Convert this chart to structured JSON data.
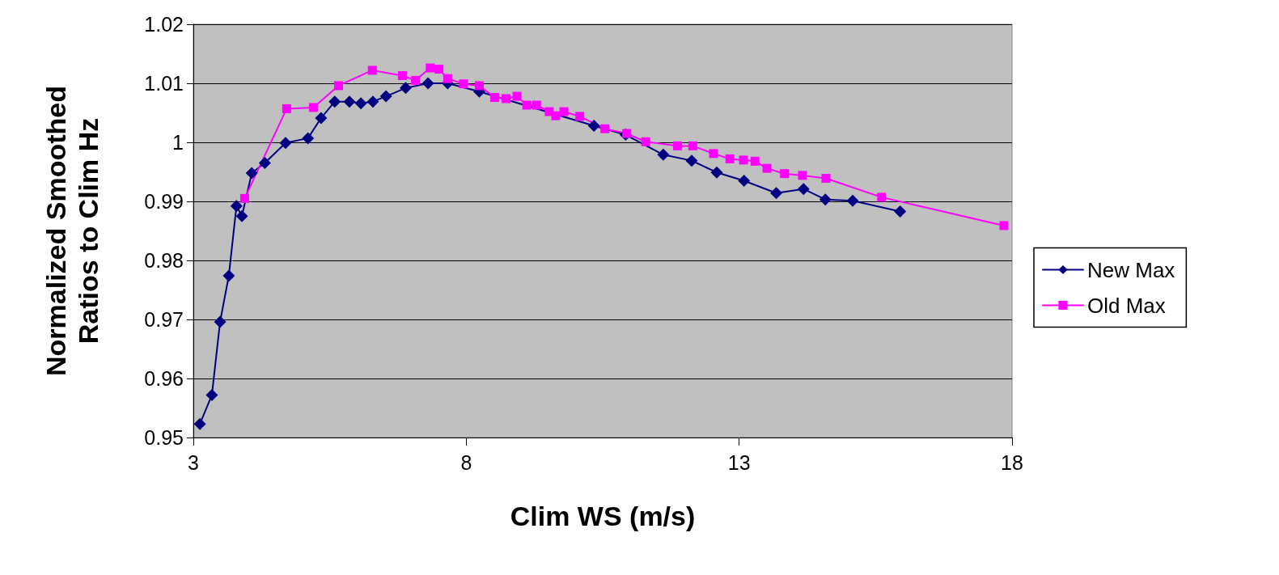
{
  "chart_data": {
    "type": "line",
    "xlabel": "Clim WS (m/s)",
    "ylabel": "Normalized Smoothed Ratios to Clim Hz",
    "xlim": [
      3,
      18
    ],
    "xticks": [
      3,
      8,
      13,
      18
    ],
    "ylim": [
      0.95,
      1.02
    ],
    "yticks": [
      0.95,
      0.96,
      0.97,
      0.98,
      0.99,
      1,
      1.01,
      1.02
    ],
    "grid": "y",
    "legend": "right",
    "series": [
      {
        "name": "New Max",
        "color": "#000080",
        "marker": "diamond",
        "x": [
          3.12,
          3.34,
          3.49,
          3.65,
          3.79,
          3.89,
          4.07,
          4.31,
          4.69,
          5.1,
          5.34,
          5.59,
          5.86,
          6.07,
          6.29,
          6.53,
          6.89,
          7.3,
          7.66,
          8.24,
          10.34,
          10.92,
          11.61,
          12.13,
          12.59,
          13.09,
          13.68,
          14.18,
          14.58,
          15.08,
          15.95
        ],
        "values": [
          0.9523,
          0.9572,
          0.9696,
          0.9774,
          0.9892,
          0.9875,
          0.9948,
          0.9965,
          0.9999,
          1.0007,
          1.0041,
          1.0069,
          1.0069,
          1.0066,
          1.0069,
          1.0078,
          1.0092,
          1.01,
          1.01,
          1.0086,
          1.0028,
          1.0013,
          0.9979,
          0.9969,
          0.9949,
          0.9935,
          0.9914,
          0.9921,
          0.9903,
          0.9901,
          0.9883
        ]
      },
      {
        "name": "Old Max",
        "color": "#ff00ff",
        "marker": "square",
        "x": [
          3.94,
          4.71,
          5.2,
          5.66,
          6.28,
          6.83,
          7.07,
          7.34,
          7.5,
          7.66,
          7.95,
          8.24,
          8.52,
          8.73,
          8.93,
          9.11,
          9.29,
          9.52,
          9.64,
          9.79,
          10.08,
          10.54,
          10.94,
          11.29,
          11.87,
          12.15,
          12.53,
          12.83,
          13.08,
          13.29,
          13.51,
          13.83,
          14.16,
          14.59,
          15.61,
          17.85
        ],
        "values": [
          0.9905,
          1.0057,
          1.0059,
          1.0096,
          1.0122,
          1.0113,
          1.0105,
          1.0126,
          1.0124,
          1.0108,
          1.0099,
          1.0096,
          1.0076,
          1.0074,
          1.0078,
          1.0063,
          1.0063,
          1.0052,
          1.0045,
          1.0052,
          1.0044,
          1.0023,
          1.0015,
          1.0001,
          0.9994,
          0.9994,
          0.9981,
          0.9972,
          0.997,
          0.9968,
          0.9956,
          0.9947,
          0.9944,
          0.9939,
          0.9907,
          0.9859
        ]
      }
    ]
  }
}
